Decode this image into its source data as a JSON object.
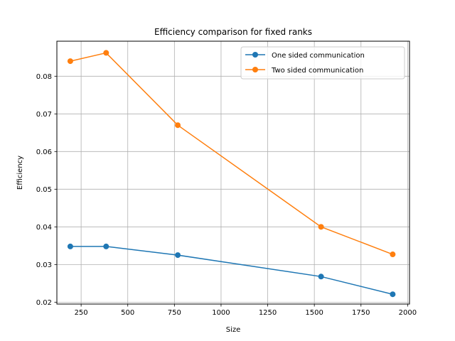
{
  "chart_data": {
    "type": "line",
    "title": "Efficiency comparison for fixed ranks",
    "xlabel": "Size",
    "ylabel": "Efficiency",
    "xlim": [
      120,
      2010
    ],
    "ylim": [
      0.0195,
      0.0893
    ],
    "xticks": [
      250,
      500,
      750,
      1000,
      1250,
      1500,
      1750,
      2000
    ],
    "yticks": [
      0.02,
      0.03,
      0.04,
      0.05,
      0.06,
      0.07,
      0.08
    ],
    "xtick_labels": [
      "250",
      "500",
      "750",
      "1000",
      "1250",
      "1500",
      "1750",
      "2000"
    ],
    "ytick_labels": [
      "0.02",
      "0.03",
      "0.04",
      "0.05",
      "0.06",
      "0.07",
      "0.08"
    ],
    "grid": true,
    "legend_position": "top-right",
    "series": [
      {
        "name": "One sided communication",
        "color": "#1f77b4",
        "marker": "circle",
        "x": [
          192,
          384,
          768,
          1536,
          1920
        ],
        "y": [
          0.0348,
          0.0348,
          0.0325,
          0.0268,
          0.0221
        ]
      },
      {
        "name": "Two sided communication",
        "color": "#ff7f0e",
        "marker": "circle",
        "x": [
          192,
          384,
          768,
          1536,
          1920
        ],
        "y": [
          0.084,
          0.0862,
          0.067,
          0.04,
          0.0327
        ]
      }
    ]
  }
}
